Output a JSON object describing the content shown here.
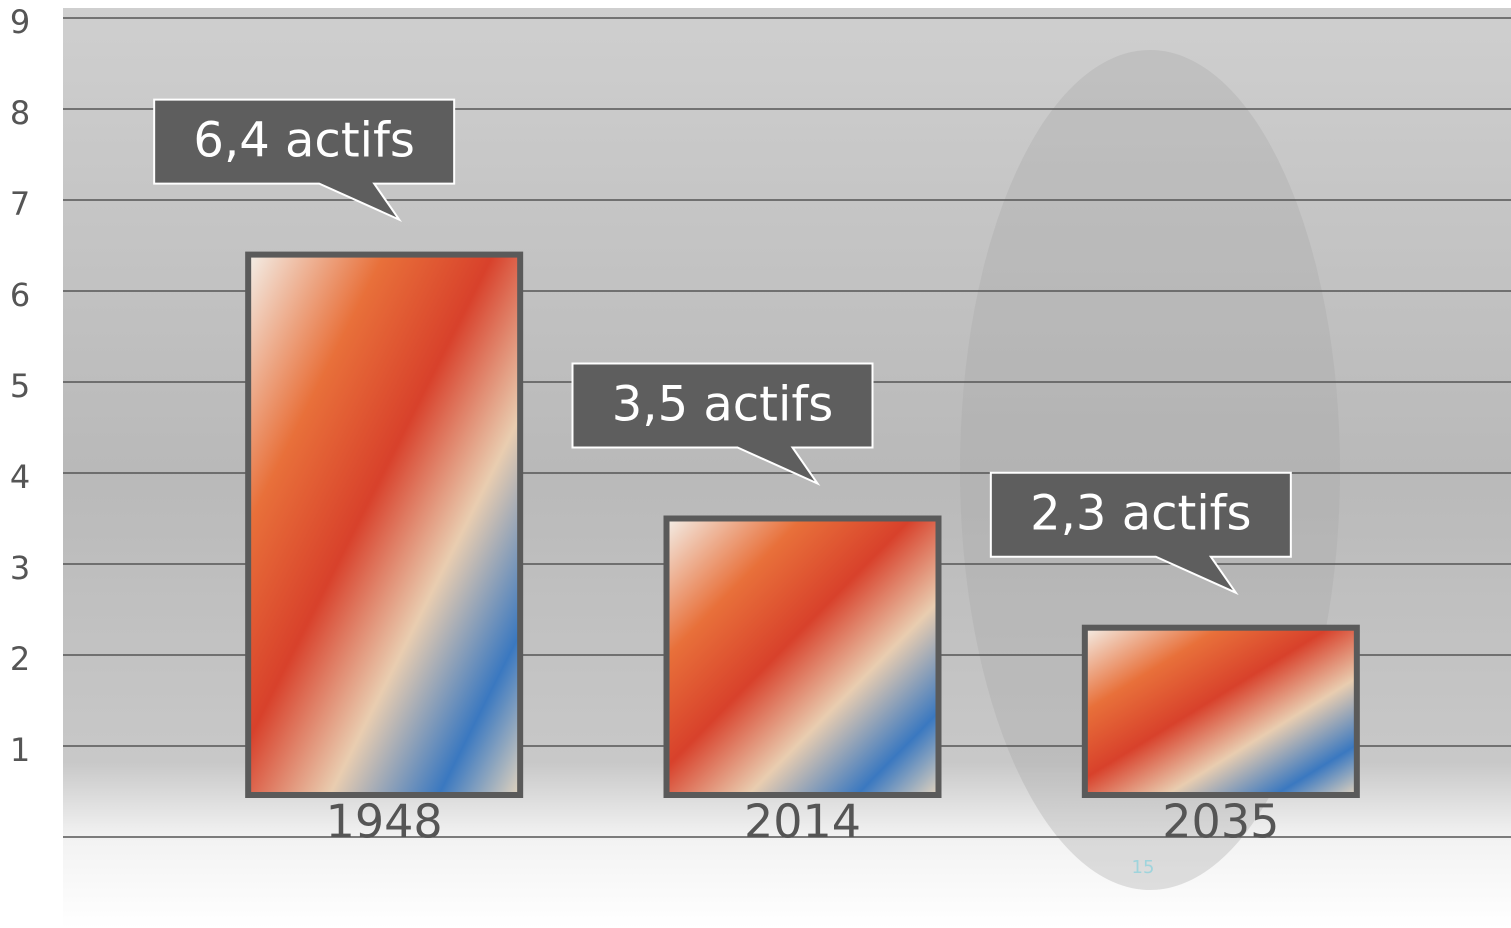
{
  "chart_data": {
    "type": "bar",
    "categories": [
      "1948",
      "2014",
      "2035"
    ],
    "values": [
      6.4,
      3.5,
      2.3
    ],
    "value_labels": [
      "6,4 actifs",
      "3,5 actifs",
      "2,3 actifs"
    ],
    "ylim": [
      0,
      9
    ],
    "yticks": [
      1,
      2,
      3,
      4,
      5,
      6,
      7,
      8,
      9
    ],
    "grid": true,
    "page_number": "15"
  }
}
